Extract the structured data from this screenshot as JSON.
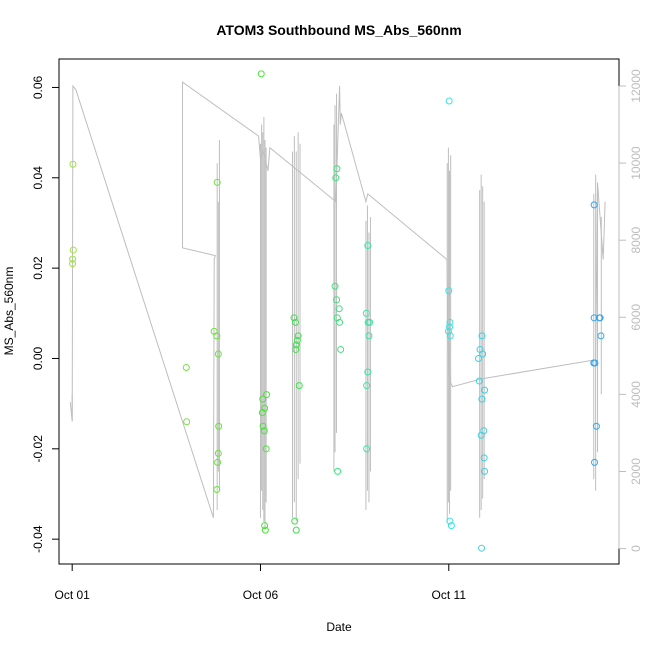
{
  "chart_data": {
    "type": "scatter",
    "title": "ATOM3 Southbound MS_Abs_560nm",
    "xlabel": "Date",
    "ylabel": "MS_Abs_560nm",
    "x_ticks": [
      {
        "day": 1,
        "label": "Oct 01"
      },
      {
        "day": 6,
        "label": "Oct 06"
      },
      {
        "day": 11,
        "label": "Oct 11"
      }
    ],
    "xlim": [
      0.65,
      15.52
    ],
    "ylim": [
      -0.0455,
      0.0663
    ],
    "y_ticks": [
      -0.04,
      -0.02,
      0.0,
      0.02,
      0.04,
      0.06
    ],
    "y_tick_labels": [
      "-0.04",
      "-0.02",
      "0.00",
      "0.02",
      "0.04",
      "0.06"
    ],
    "y2lim": [
      -400,
      12700
    ],
    "y2_ticks": [
      0,
      2000,
      4000,
      6000,
      8000,
      10000,
      12000
    ],
    "y2_tick_labels": [
      "0",
      "2000",
      "4000",
      "6000",
      "8000",
      "10000",
      "12000"
    ],
    "colors": {
      "line": "#bebebe",
      "axis": "#000000",
      "right_axis": "#bdbdbd"
    },
    "points": [
      {
        "x": 1.02,
        "y": 0.043,
        "c": "#9de33b"
      },
      {
        "x": 1.03,
        "y": 0.024,
        "c": "#9de33b"
      },
      {
        "x": 1.01,
        "y": 0.022,
        "c": "#9de33b"
      },
      {
        "x": 1.01,
        "y": 0.021,
        "c": "#9de33b"
      },
      {
        "x": 4.03,
        "y": -0.002,
        "c": "#7ae33b"
      },
      {
        "x": 4.04,
        "y": -0.014,
        "c": "#7ae33b"
      },
      {
        "x": 4.77,
        "y": 0.006,
        "c": "#6ae33b"
      },
      {
        "x": 4.84,
        "y": 0.005,
        "c": "#6ae33b"
      },
      {
        "x": 4.85,
        "y": 0.039,
        "c": "#6ae33b"
      },
      {
        "x": 4.88,
        "y": 0.001,
        "c": "#6ae33b"
      },
      {
        "x": 4.89,
        "y": -0.015,
        "c": "#6ae33b"
      },
      {
        "x": 4.88,
        "y": -0.021,
        "c": "#6ae33b"
      },
      {
        "x": 4.86,
        "y": -0.023,
        "c": "#6ae33b"
      },
      {
        "x": 4.84,
        "y": -0.029,
        "c": "#6ae33b"
      },
      {
        "x": 6.02,
        "y": 0.063,
        "c": "#4ce33b"
      },
      {
        "x": 6.06,
        "y": -0.009,
        "c": "#4ce33b"
      },
      {
        "x": 6.16,
        "y": -0.008,
        "c": "#4ce33b"
      },
      {
        "x": 6.11,
        "y": -0.011,
        "c": "#4ce33b"
      },
      {
        "x": 6.05,
        "y": -0.012,
        "c": "#4ce33b"
      },
      {
        "x": 6.07,
        "y": -0.015,
        "c": "#4ce33b"
      },
      {
        "x": 6.1,
        "y": -0.016,
        "c": "#4ce33b"
      },
      {
        "x": 6.15,
        "y": -0.02,
        "c": "#4ce33b"
      },
      {
        "x": 6.11,
        "y": -0.037,
        "c": "#4ce33b"
      },
      {
        "x": 6.13,
        "y": -0.038,
        "c": "#4ce33b"
      },
      {
        "x": 6.89,
        "y": 0.009,
        "c": "#3be34a"
      },
      {
        "x": 6.93,
        "y": 0.008,
        "c": "#3be34a"
      },
      {
        "x": 7.0,
        "y": 0.005,
        "c": "#3be34a"
      },
      {
        "x": 6.98,
        "y": 0.004,
        "c": "#3be34a"
      },
      {
        "x": 6.95,
        "y": 0.003,
        "c": "#3be34a"
      },
      {
        "x": 6.94,
        "y": 0.002,
        "c": "#3be34a"
      },
      {
        "x": 7.03,
        "y": -0.006,
        "c": "#3be34a"
      },
      {
        "x": 6.91,
        "y": -0.036,
        "c": "#3be34a"
      },
      {
        "x": 6.95,
        "y": -0.038,
        "c": "#3be34a"
      },
      {
        "x": 8.03,
        "y": 0.042,
        "c": "#3be37d"
      },
      {
        "x": 8.0,
        "y": 0.04,
        "c": "#3be37d"
      },
      {
        "x": 7.98,
        "y": 0.016,
        "c": "#3be37d"
      },
      {
        "x": 8.02,
        "y": 0.013,
        "c": "#3be37d"
      },
      {
        "x": 8.09,
        "y": 0.011,
        "c": "#3be37d"
      },
      {
        "x": 8.04,
        "y": 0.009,
        "c": "#3be37d"
      },
      {
        "x": 8.1,
        "y": 0.008,
        "c": "#3be37d"
      },
      {
        "x": 8.13,
        "y": 0.002,
        "c": "#3be37d"
      },
      {
        "x": 8.05,
        "y": -0.025,
        "c": "#3be37d"
      },
      {
        "x": 8.85,
        "y": 0.025,
        "c": "#3be3a0"
      },
      {
        "x": 8.81,
        "y": 0.01,
        "c": "#3be3a0"
      },
      {
        "x": 8.86,
        "y": 0.008,
        "c": "#3be3a0"
      },
      {
        "x": 8.9,
        "y": 0.008,
        "c": "#3be3a0"
      },
      {
        "x": 8.88,
        "y": 0.005,
        "c": "#3be3a0"
      },
      {
        "x": 8.85,
        "y": -0.003,
        "c": "#3be3a0"
      },
      {
        "x": 8.82,
        "y": -0.006,
        "c": "#3be3a0"
      },
      {
        "x": 8.82,
        "y": -0.02,
        "c": "#3be3a0"
      },
      {
        "x": 11.01,
        "y": 0.057,
        "c": "#3be3e3"
      },
      {
        "x": 11.0,
        "y": 0.015,
        "c": "#3be3e3"
      },
      {
        "x": 11.03,
        "y": 0.008,
        "c": "#3be3e3"
      },
      {
        "x": 11.02,
        "y": 0.007,
        "c": "#3be3e3"
      },
      {
        "x": 10.99,
        "y": 0.006,
        "c": "#3be3e3"
      },
      {
        "x": 11.04,
        "y": 0.005,
        "c": "#3be3e3"
      },
      {
        "x": 11.03,
        "y": -0.036,
        "c": "#3be3e3"
      },
      {
        "x": 11.07,
        "y": -0.037,
        "c": "#3be3e3"
      },
      {
        "x": 11.79,
        "y": 0.0,
        "c": "#3bd1e3"
      },
      {
        "x": 11.83,
        "y": 0.002,
        "c": "#3bd1e3"
      },
      {
        "x": 11.88,
        "y": 0.005,
        "c": "#3bd1e3"
      },
      {
        "x": 11.9,
        "y": 0.001,
        "c": "#3bd1e3"
      },
      {
        "x": 11.81,
        "y": -0.005,
        "c": "#3bd1e3"
      },
      {
        "x": 11.95,
        "y": -0.007,
        "c": "#3bd1e3"
      },
      {
        "x": 11.88,
        "y": -0.009,
        "c": "#3bd1e3"
      },
      {
        "x": 11.93,
        "y": -0.016,
        "c": "#3bd1e3"
      },
      {
        "x": 11.86,
        "y": -0.017,
        "c": "#3bd1e3"
      },
      {
        "x": 11.94,
        "y": -0.022,
        "c": "#3bd1e3"
      },
      {
        "x": 11.95,
        "y": -0.025,
        "c": "#3bd1e3"
      },
      {
        "x": 11.87,
        "y": -0.042,
        "c": "#3bd1e3"
      },
      {
        "x": 14.86,
        "y": 0.034,
        "c": "#3ba4e3"
      },
      {
        "x": 14.86,
        "y": 0.009,
        "c": "#3ba4e3"
      },
      {
        "x": 15.0,
        "y": 0.009,
        "c": "#3ba4e3"
      },
      {
        "x": 15.02,
        "y": 0.009,
        "c": "#3ba4e3"
      },
      {
        "x": 15.04,
        "y": 0.005,
        "c": "#3ba4e3"
      },
      {
        "x": 14.85,
        "y": -0.001,
        "c": "#3ba4e3"
      },
      {
        "x": 14.88,
        "y": -0.001,
        "c": "#3ba4e3"
      },
      {
        "x": 14.92,
        "y": -0.015,
        "c": "#3ba4e3"
      },
      {
        "x": 14.87,
        "y": -0.023,
        "c": "#3ba4e3"
      }
    ],
    "line": [
      [
        0.95,
        3800
      ],
      [
        1.0,
        3300
      ],
      [
        1.02,
        12000
      ],
      [
        1.1,
        11900
      ],
      [
        4.75,
        800
      ],
      [
        4.77,
        7500
      ],
      [
        4.8,
        7600
      ],
      [
        3.93,
        7800
      ],
      [
        3.93,
        12100
      ],
      [
        5.95,
        10700
      ],
      [
        6.0,
        10100
      ],
      [
        6.05,
        10300
      ],
      [
        6.1,
        10200
      ],
      [
        6.15,
        10000
      ],
      [
        6.2,
        9800
      ],
      [
        6.25,
        10400
      ],
      [
        7.0,
        9800
      ],
      [
        8.0,
        9000
      ],
      [
        8.1,
        12000
      ],
      [
        8.12,
        11000
      ],
      [
        8.15,
        11300
      ],
      [
        8.8,
        9000
      ],
      [
        8.85,
        9200
      ],
      [
        10.95,
        7500
      ],
      [
        11.0,
        4600
      ],
      [
        11.05,
        4300
      ],
      [
        11.1,
        4200
      ],
      [
        11.85,
        4400
      ],
      [
        14.9,
        4900
      ],
      [
        14.95,
        9500
      ],
      [
        15.1,
        7500
      ],
      [
        15.15,
        9000
      ]
    ],
    "spikes": [
      {
        "x": 1.0,
        "lo": 3300,
        "hi": 4000
      },
      {
        "x": 4.85,
        "lo": 1000,
        "hi": 10000
      },
      {
        "x": 4.88,
        "lo": 2000,
        "hi": 9000
      },
      {
        "x": 4.91,
        "lo": 1500,
        "hi": 10600
      },
      {
        "x": 6.0,
        "lo": 800,
        "hi": 10500
      },
      {
        "x": 6.03,
        "lo": 1500,
        "hi": 11000
      },
      {
        "x": 6.06,
        "lo": 1000,
        "hi": 10800
      },
      {
        "x": 6.09,
        "lo": 700,
        "hi": 11200
      },
      {
        "x": 6.12,
        "lo": 500,
        "hi": 10600
      },
      {
        "x": 6.15,
        "lo": 1200,
        "hi": 10400
      },
      {
        "x": 6.85,
        "lo": 800,
        "hi": 10300
      },
      {
        "x": 6.9,
        "lo": 1200,
        "hi": 10700
      },
      {
        "x": 6.95,
        "lo": 700,
        "hi": 10300
      },
      {
        "x": 7.0,
        "lo": 1800,
        "hi": 10800
      },
      {
        "x": 7.05,
        "lo": 2200,
        "hi": 10500
      },
      {
        "x": 7.95,
        "lo": 2000,
        "hi": 11000
      },
      {
        "x": 7.98,
        "lo": 2500,
        "hi": 11500
      },
      {
        "x": 8.02,
        "lo": 3000,
        "hi": 11800
      },
      {
        "x": 8.8,
        "lo": 1000,
        "hi": 8500
      },
      {
        "x": 8.84,
        "lo": 1500,
        "hi": 8900
      },
      {
        "x": 8.88,
        "lo": 1200,
        "hi": 8200
      },
      {
        "x": 8.92,
        "lo": 2000,
        "hi": 8600
      },
      {
        "x": 10.96,
        "lo": 700,
        "hi": 10000
      },
      {
        "x": 10.99,
        "lo": 1200,
        "hi": 10400
      },
      {
        "x": 11.02,
        "lo": 900,
        "hi": 9800
      },
      {
        "x": 11.05,
        "lo": 1500,
        "hi": 10200
      },
      {
        "x": 11.82,
        "lo": 800,
        "hi": 9300
      },
      {
        "x": 11.86,
        "lo": 1000,
        "hi": 9700
      },
      {
        "x": 11.9,
        "lo": 1300,
        "hi": 9400
      },
      {
        "x": 11.94,
        "lo": 1800,
        "hi": 9000
      },
      {
        "x": 14.85,
        "lo": 1800,
        "hi": 9200
      },
      {
        "x": 14.9,
        "lo": 1500,
        "hi": 9700
      },
      {
        "x": 14.95,
        "lo": 2500,
        "hi": 9400
      },
      {
        "x": 15.05,
        "lo": 4000,
        "hi": 8600
      }
    ]
  }
}
